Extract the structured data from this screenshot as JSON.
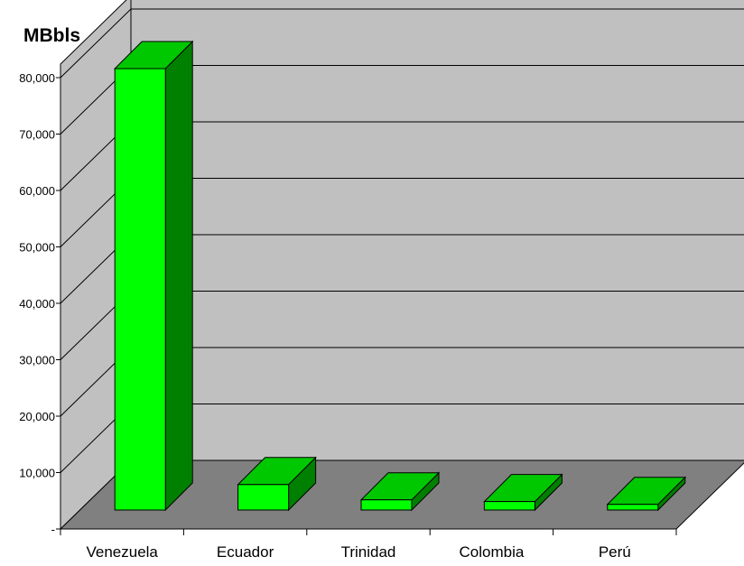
{
  "chart_data": {
    "type": "bar",
    "unit_label": "MBbls",
    "categories": [
      "Venezuela",
      "Ecuador",
      "Trinidad",
      "Colombia",
      "Perú"
    ],
    "values": [
      78000,
      4500,
      1800,
      1500,
      1000
    ],
    "ylim": [
      0,
      80000
    ],
    "y_ticks": [
      0,
      10000,
      20000,
      30000,
      40000,
      50000,
      60000,
      70000,
      80000
    ],
    "y_tick_labels": [
      "-",
      "10,000",
      "20,000",
      "30,000",
      "40,000",
      "50,000",
      "60,000",
      "70,000",
      "80,000"
    ],
    "grid": true,
    "style": "3d",
    "colors": {
      "bar_front": "#00ff00",
      "bar_side": "#008000",
      "bar_top": "#00c800",
      "back_wall": "#c0c0c0",
      "side_wall": "#c0c0c0",
      "floor": "#808080"
    }
  }
}
